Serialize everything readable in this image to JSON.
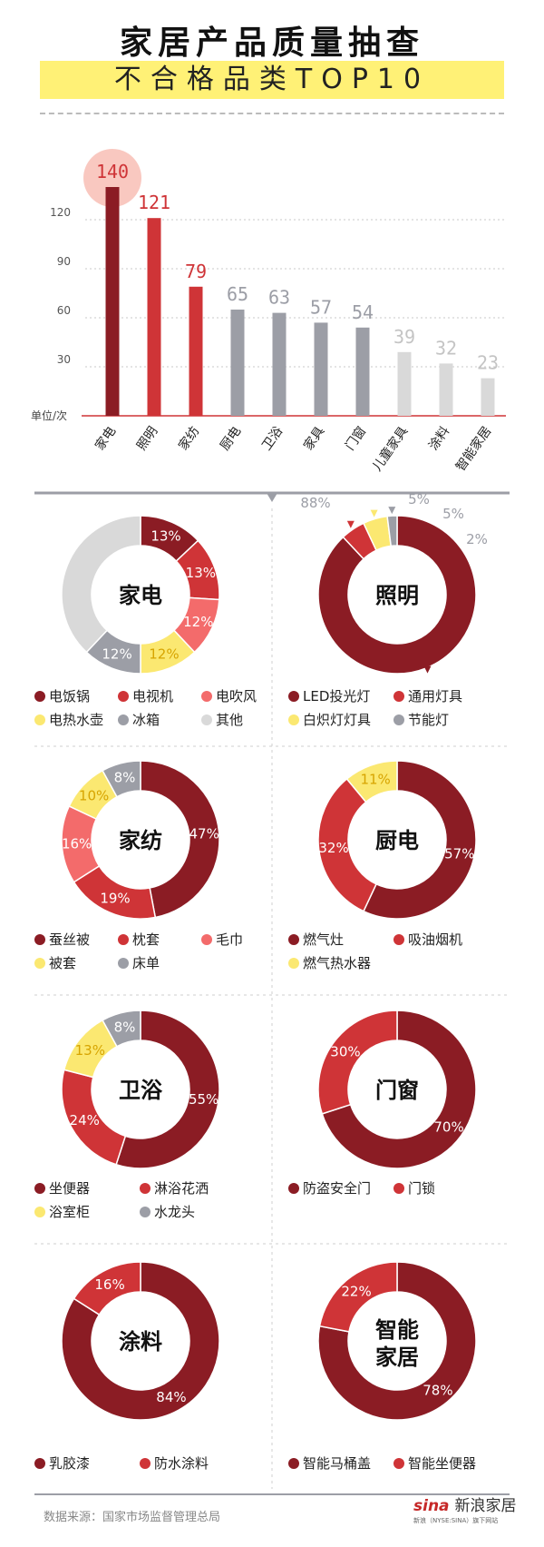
{
  "title": "家居产品质量抽查",
  "subtitle": "不合格品类TOP10",
  "source": "数据来源：国家市场监督管理总局",
  "logo": {
    "brand": "sina",
    "label": "新浪家居",
    "sub": "新浪（NYSE:SINA）旗下网站"
  },
  "colors": {
    "darkred": "#8b1c24",
    "red": "#cf3437",
    "pink": "#f36b6b",
    "yellow": "#fbe871",
    "gray": "#9c9ea6",
    "lightgray": "#d9d9d9",
    "circle": "#f9c8c0"
  },
  "chart_data": [
    {
      "type": "bar",
      "categories": [
        "家电",
        "照明",
        "家纺",
        "厨电",
        "卫浴",
        "家具",
        "门窗",
        "儿童家具",
        "涂料",
        "智能家居"
      ],
      "values": [
        140,
        121,
        79,
        65,
        63,
        57,
        54,
        39,
        32,
        23
      ],
      "value_labels": [
        "140",
        "121",
        "79",
        "65",
        "63",
        "57",
        "54",
        "39",
        "32",
        "23"
      ],
      "ylabel": "单位/次",
      "yticks": [
        "30",
        "60",
        "90",
        "120"
      ],
      "ylim": [
        0,
        150
      ],
      "grid": true,
      "bar_colors": [
        "#8b1c24",
        "#cf3437",
        "#cf3437",
        "#9c9ea6",
        "#9c9ea6",
        "#9c9ea6",
        "#9c9ea6",
        "#d9d9d9",
        "#d9d9d9",
        "#d9d9d9"
      ],
      "label_colors": [
        "#cf3437",
        "#cf3437",
        "#cf3437",
        "#9c9ea6",
        "#9c9ea6",
        "#9c9ea6",
        "#9c9ea6",
        "#c4c4c4",
        "#c4c4c4",
        "#c4c4c4"
      ]
    },
    {
      "type": "pie",
      "title": "家电",
      "slices": [
        {
          "name": "电饭锅",
          "value": 13,
          "label": "13%",
          "color": "#8b1c24"
        },
        {
          "name": "电视机",
          "value": 13,
          "label": "13%",
          "color": "#cf3437"
        },
        {
          "name": "电吹风",
          "value": 12,
          "label": "12%",
          "color": "#f36b6b"
        },
        {
          "name": "电热水壶",
          "value": 12,
          "label": "12%",
          "color": "#fbe871"
        },
        {
          "name": "冰箱",
          "value": 12,
          "label": "12%",
          "color": "#9c9ea6"
        },
        {
          "name": "其他",
          "value": 38,
          "label": "",
          "color": "#d9d9d9"
        }
      ]
    },
    {
      "type": "pie",
      "title": "照明",
      "slices": [
        {
          "name": "LED投光灯",
          "value": 88,
          "label": "88%",
          "color": "#8b1c24"
        },
        {
          "name": "通用灯具",
          "value": 5,
          "label": "5%",
          "color": "#cf3437"
        },
        {
          "name": "白炽灯灯具",
          "value": 5,
          "label": "5%",
          "color": "#fbe871"
        },
        {
          "name": "节能灯",
          "value": 2,
          "label": "2%",
          "color": "#9c9ea6"
        }
      ]
    },
    {
      "type": "pie",
      "title": "家纺",
      "slices": [
        {
          "name": "蚕丝被",
          "value": 47,
          "label": "47%",
          "color": "#8b1c24"
        },
        {
          "name": "枕套",
          "value": 19,
          "label": "19%",
          "color": "#cf3437"
        },
        {
          "name": "毛巾",
          "value": 16,
          "label": "16%",
          "color": "#f36b6b"
        },
        {
          "name": "被套",
          "value": 10,
          "label": "10%",
          "color": "#fbe871"
        },
        {
          "name": "床单",
          "value": 8,
          "label": "8%",
          "color": "#9c9ea6"
        }
      ]
    },
    {
      "type": "pie",
      "title": "厨电",
      "slices": [
        {
          "name": "燃气灶",
          "value": 57,
          "label": "57%",
          "color": "#8b1c24"
        },
        {
          "name": "吸油烟机",
          "value": 32,
          "label": "32%",
          "color": "#cf3437"
        },
        {
          "name": "燃气热水器",
          "value": 11,
          "label": "11%",
          "color": "#fbe871"
        }
      ]
    },
    {
      "type": "pie",
      "title": "卫浴",
      "slices": [
        {
          "name": "坐便器",
          "value": 55,
          "label": "55%",
          "color": "#8b1c24"
        },
        {
          "name": "淋浴花洒",
          "value": 24,
          "label": "24%",
          "color": "#cf3437"
        },
        {
          "name": "浴室柜",
          "value": 13,
          "label": "13%",
          "color": "#fbe871"
        },
        {
          "name": "水龙头",
          "value": 8,
          "label": "8%",
          "color": "#9c9ea6"
        }
      ]
    },
    {
      "type": "pie",
      "title": "门窗",
      "slices": [
        {
          "name": "防盗安全门",
          "value": 70,
          "label": "70%",
          "color": "#8b1c24"
        },
        {
          "name": "门锁",
          "value": 30,
          "label": "30%",
          "color": "#cf3437"
        }
      ]
    },
    {
      "type": "pie",
      "title": "涂料",
      "slices": [
        {
          "name": "乳胶漆",
          "value": 84,
          "label": "84%",
          "color": "#8b1c24"
        },
        {
          "name": "防水涂料",
          "value": 16,
          "label": "16%",
          "color": "#cf3437"
        }
      ]
    },
    {
      "type": "pie",
      "title": "智能家居",
      "slices": [
        {
          "name": "智能马桶盖",
          "value": 78,
          "label": "78%",
          "color": "#8b1c24"
        },
        {
          "name": "智能坐便器",
          "value": 22,
          "label": "22%",
          "color": "#cf3437"
        }
      ]
    }
  ]
}
